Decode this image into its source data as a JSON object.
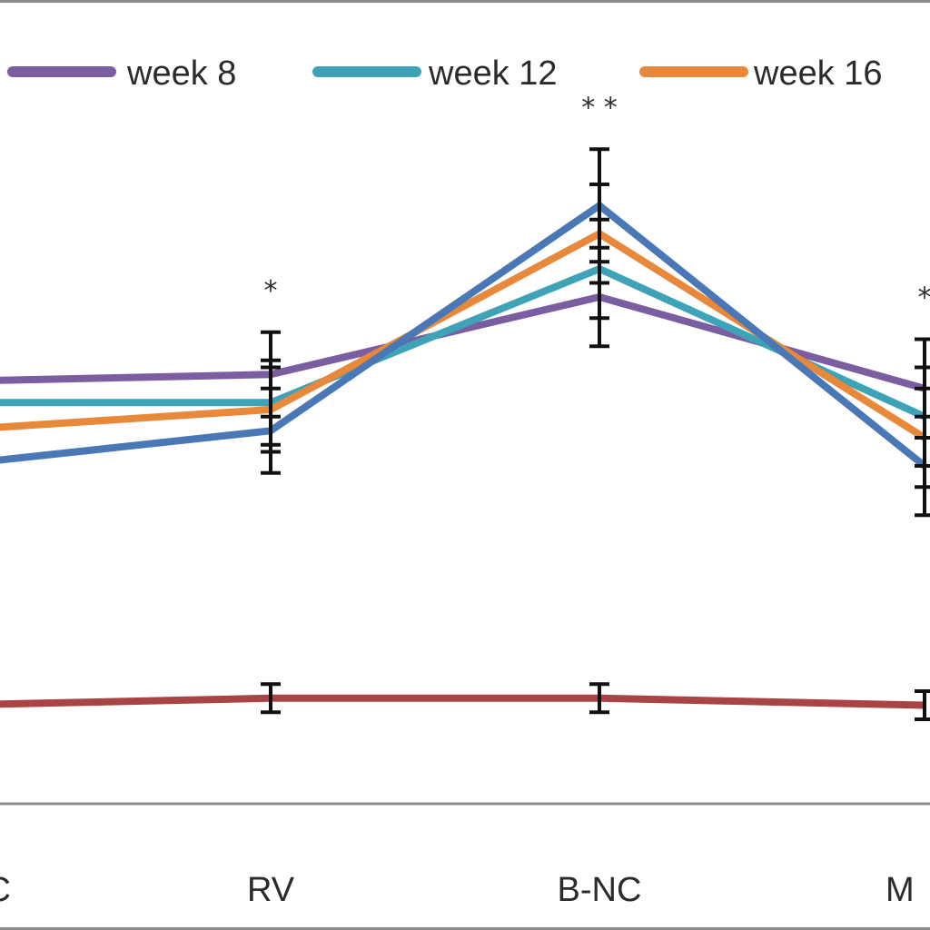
{
  "chart_data": {
    "type": "line",
    "categories": [
      "C",
      "RV",
      "B-NC",
      "M"
    ],
    "category_labels_visible": [
      "C",
      "RV",
      "B-NC",
      "M"
    ],
    "ylim": [
      0,
      100
    ],
    "series": [
      {
        "name": "week 8",
        "color": "#7b5ea1",
        "values": [
          60,
          61,
          72,
          59
        ],
        "err": [
          0,
          6,
          7,
          7
        ]
      },
      {
        "name": "week 12",
        "color": "#3ea3b7",
        "values": [
          57,
          57,
          76,
          55
        ],
        "err": [
          0,
          6,
          7,
          7
        ]
      },
      {
        "name": "week 16",
        "color": "#e8883a",
        "values": [
          53,
          56,
          81,
          52
        ],
        "err": [
          0,
          6,
          7,
          7
        ]
      },
      {
        "name": "",
        "color": "#4a78b6",
        "values": [
          48,
          53,
          85,
          48
        ],
        "err": [
          0,
          6,
          8,
          7
        ]
      },
      {
        "name": "",
        "color": "#a84444",
        "values": [
          14,
          15,
          15,
          14
        ],
        "err": [
          0,
          2,
          2,
          2
        ]
      }
    ],
    "significance": [
      {
        "category": "RV",
        "label": "*"
      },
      {
        "category": "B-NC",
        "label": "**"
      },
      {
        "category": "M",
        "label": "*"
      }
    ],
    "grid": false,
    "legend": "top"
  }
}
